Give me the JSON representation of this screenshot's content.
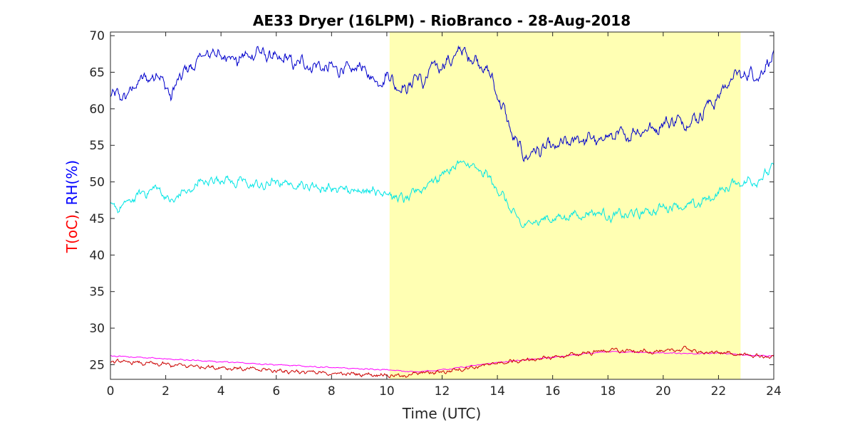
{
  "chart_data": {
    "type": "line",
    "title": "AE33 Dryer (16LPM)  - RioBranco - 28-Aug-2018",
    "xlabel": "Time (UTC)",
    "ylabel_parts": [
      {
        "text": "T(oC)",
        "color": "#ff0000"
      },
      {
        "text": ", ",
        "color": "#262626"
      },
      {
        "text": "RH(%)",
        "color": "#0000ff"
      }
    ],
    "xlim": [
      0,
      24
    ],
    "ylim": [
      23,
      70.5
    ],
    "x_ticks": [
      0,
      2,
      4,
      6,
      8,
      10,
      12,
      14,
      16,
      18,
      20,
      22,
      24
    ],
    "y_ticks": [
      25,
      30,
      35,
      40,
      45,
      50,
      55,
      60,
      65,
      70
    ],
    "grid": false,
    "highlight_band": {
      "x_start": 10.1,
      "x_end": 22.8,
      "color": "#ffffb3"
    },
    "series": [
      {
        "color": "#0000cc",
        "noise": 1.1,
        "points": [
          [
            0,
            61.5
          ],
          [
            0.3,
            62
          ],
          [
            0.6,
            61.5
          ],
          [
            0.9,
            63.5
          ],
          [
            1.2,
            64
          ],
          [
            1.5,
            64.5
          ],
          [
            1.8,
            64.5
          ],
          [
            2.0,
            63.5
          ],
          [
            2.2,
            61
          ],
          [
            2.4,
            64
          ],
          [
            2.7,
            65
          ],
          [
            3.0,
            66
          ],
          [
            3.3,
            67
          ],
          [
            3.6,
            67.8
          ],
          [
            4.0,
            67.2
          ],
          [
            4.3,
            67.2
          ],
          [
            4.6,
            66.8
          ],
          [
            5.0,
            67.2
          ],
          [
            5.3,
            67.8
          ],
          [
            5.6,
            67.5
          ],
          [
            6.0,
            66.8
          ],
          [
            6.3,
            66.8
          ],
          [
            6.6,
            66.3
          ],
          [
            7.0,
            66.2
          ],
          [
            7.3,
            65.8
          ],
          [
            7.6,
            65.8
          ],
          [
            8.0,
            65.5
          ],
          [
            8.3,
            65.5
          ],
          [
            8.6,
            65.2
          ],
          [
            9.0,
            65.8
          ],
          [
            9.3,
            65
          ],
          [
            9.6,
            63.5
          ],
          [
            10.0,
            64.5
          ],
          [
            10.2,
            64
          ],
          [
            10.4,
            63
          ],
          [
            10.7,
            62.5
          ],
          [
            11.0,
            64.5
          ],
          [
            11.3,
            63.5
          ],
          [
            11.6,
            65.5
          ],
          [
            12.0,
            66
          ],
          [
            12.3,
            66.5
          ],
          [
            12.6,
            68
          ],
          [
            12.9,
            67.5
          ],
          [
            13.2,
            66.5
          ],
          [
            13.5,
            66
          ],
          [
            13.8,
            64
          ],
          [
            14.0,
            62
          ],
          [
            14.2,
            60
          ],
          [
            14.4,
            58
          ],
          [
            14.6,
            56
          ],
          [
            14.8,
            54.5
          ],
          [
            15.0,
            53.5
          ],
          [
            15.3,
            54
          ],
          [
            15.6,
            54.5
          ],
          [
            16.0,
            54.8
          ],
          [
            16.3,
            55
          ],
          [
            16.6,
            55.5
          ],
          [
            17.0,
            55.8
          ],
          [
            17.3,
            56
          ],
          [
            17.6,
            55.5
          ],
          [
            18.0,
            56.2
          ],
          [
            18.3,
            56.5
          ],
          [
            18.6,
            56.2
          ],
          [
            19.0,
            56.8
          ],
          [
            19.3,
            57.2
          ],
          [
            19.6,
            57.2
          ],
          [
            20.0,
            57.8
          ],
          [
            20.3,
            58.5
          ],
          [
            20.6,
            58.2
          ],
          [
            21.0,
            58.2
          ],
          [
            21.3,
            59
          ],
          [
            21.6,
            60.5
          ],
          [
            22.0,
            61.5
          ],
          [
            22.3,
            63.5
          ],
          [
            22.6,
            64.5
          ],
          [
            23.0,
            64.8
          ],
          [
            23.3,
            64.5
          ],
          [
            23.6,
            65
          ],
          [
            24.0,
            67.5
          ]
        ]
      },
      {
        "color": "#00e5e5",
        "noise": 0.8,
        "points": [
          [
            0,
            46.5
          ],
          [
            0.3,
            46.5
          ],
          [
            0.6,
            47
          ],
          [
            0.9,
            48
          ],
          [
            1.2,
            48.5
          ],
          [
            1.5,
            49
          ],
          [
            1.8,
            49
          ],
          [
            2.0,
            48
          ],
          [
            2.2,
            47
          ],
          [
            2.5,
            48.5
          ],
          [
            2.8,
            48.5
          ],
          [
            3.2,
            50
          ],
          [
            3.6,
            50
          ],
          [
            4.0,
            50.5
          ],
          [
            4.4,
            50
          ],
          [
            4.8,
            50
          ],
          [
            5.2,
            49.5
          ],
          [
            5.6,
            49.5
          ],
          [
            6.0,
            50
          ],
          [
            6.4,
            49.8
          ],
          [
            6.8,
            49.5
          ],
          [
            7.2,
            49.5
          ],
          [
            7.6,
            49.2
          ],
          [
            8.0,
            49
          ],
          [
            8.4,
            49
          ],
          [
            8.8,
            48.8
          ],
          [
            9.2,
            49
          ],
          [
            9.6,
            48.8
          ],
          [
            10.0,
            48.5
          ],
          [
            10.3,
            48
          ],
          [
            10.6,
            47.5
          ],
          [
            11.0,
            48.5
          ],
          [
            11.4,
            49.5
          ],
          [
            11.8,
            50.5
          ],
          [
            12.2,
            51.5
          ],
          [
            12.6,
            52.5
          ],
          [
            12.9,
            52.5
          ],
          [
            13.3,
            51.5
          ],
          [
            13.6,
            51
          ],
          [
            14.0,
            49
          ],
          [
            14.3,
            47.5
          ],
          [
            14.6,
            45.5
          ],
          [
            14.9,
            44
          ],
          [
            15.2,
            44.5
          ],
          [
            15.6,
            44.8
          ],
          [
            16.0,
            45
          ],
          [
            16.4,
            45.2
          ],
          [
            16.8,
            45.5
          ],
          [
            17.2,
            45.5
          ],
          [
            17.6,
            46
          ],
          [
            18.0,
            45.2
          ],
          [
            18.4,
            45.5
          ],
          [
            18.8,
            45.5
          ],
          [
            19.2,
            45.8
          ],
          [
            19.6,
            46
          ],
          [
            20.0,
            46.5
          ],
          [
            20.4,
            46.8
          ],
          [
            20.8,
            46.5
          ],
          [
            21.2,
            47
          ],
          [
            21.6,
            47.5
          ],
          [
            22.0,
            48.5
          ],
          [
            22.4,
            49.5
          ],
          [
            22.8,
            50
          ],
          [
            23.2,
            50
          ],
          [
            23.6,
            50.5
          ],
          [
            24.0,
            52.5
          ]
        ]
      },
      {
        "color": "#ff00ff",
        "noise": 0.1,
        "points": [
          [
            0,
            26.2
          ],
          [
            2,
            25.8
          ],
          [
            4,
            25.4
          ],
          [
            6,
            25
          ],
          [
            8,
            24.6
          ],
          [
            10,
            24.3
          ],
          [
            11,
            24
          ],
          [
            12,
            24.3
          ],
          [
            13,
            24.8
          ],
          [
            14,
            25.3
          ],
          [
            16,
            26
          ],
          [
            18,
            26.8
          ],
          [
            20,
            26.6
          ],
          [
            21,
            26.5
          ],
          [
            22,
            26.6
          ],
          [
            23,
            26.3
          ],
          [
            24,
            26.2
          ]
        ]
      },
      {
        "color": "#cc0000",
        "noise": 0.35,
        "points": [
          [
            0,
            25.5
          ],
          [
            2,
            25
          ],
          [
            4,
            24.6
          ],
          [
            6,
            24.2
          ],
          [
            8,
            23.8
          ],
          [
            10,
            23.6
          ],
          [
            10.6,
            23.4
          ],
          [
            11,
            23.8
          ],
          [
            12,
            24
          ],
          [
            13,
            24.6
          ],
          [
            14,
            25.2
          ],
          [
            16,
            26
          ],
          [
            18,
            27
          ],
          [
            19,
            26.8
          ],
          [
            20,
            26.8
          ],
          [
            20.8,
            27.2
          ],
          [
            21.5,
            26.6
          ],
          [
            22,
            26.7
          ],
          [
            23,
            26.3
          ],
          [
            24,
            26
          ]
        ]
      }
    ]
  }
}
